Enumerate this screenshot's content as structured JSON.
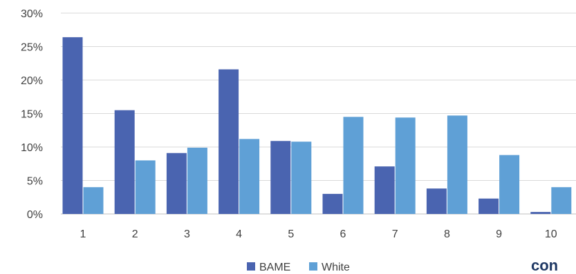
{
  "chart_data": {
    "type": "bar",
    "categories": [
      "1",
      "2",
      "3",
      "4",
      "5",
      "6",
      "7",
      "8",
      "9",
      "10"
    ],
    "series": [
      {
        "name": "BAME",
        "color": "#4a64b0",
        "values": [
          26.4,
          15.5,
          9.1,
          21.6,
          10.9,
          3.0,
          7.1,
          3.8,
          2.3,
          0.3
        ]
      },
      {
        "name": "White",
        "color": "#5fa0d6",
        "values": [
          4.0,
          8.0,
          9.9,
          11.2,
          10.8,
          14.5,
          14.4,
          14.7,
          8.8,
          4.0
        ]
      }
    ],
    "y_ticks": [
      "0%",
      "5%",
      "10%",
      "15%",
      "20%",
      "25%",
      "30%"
    ],
    "ylim": [
      0,
      30
    ],
    "grid": true,
    "legend_position": "bottom-center",
    "title": "",
    "xlabel": "",
    "ylabel": ""
  },
  "brand": {
    "text": "con",
    "color": "#1f3864"
  }
}
